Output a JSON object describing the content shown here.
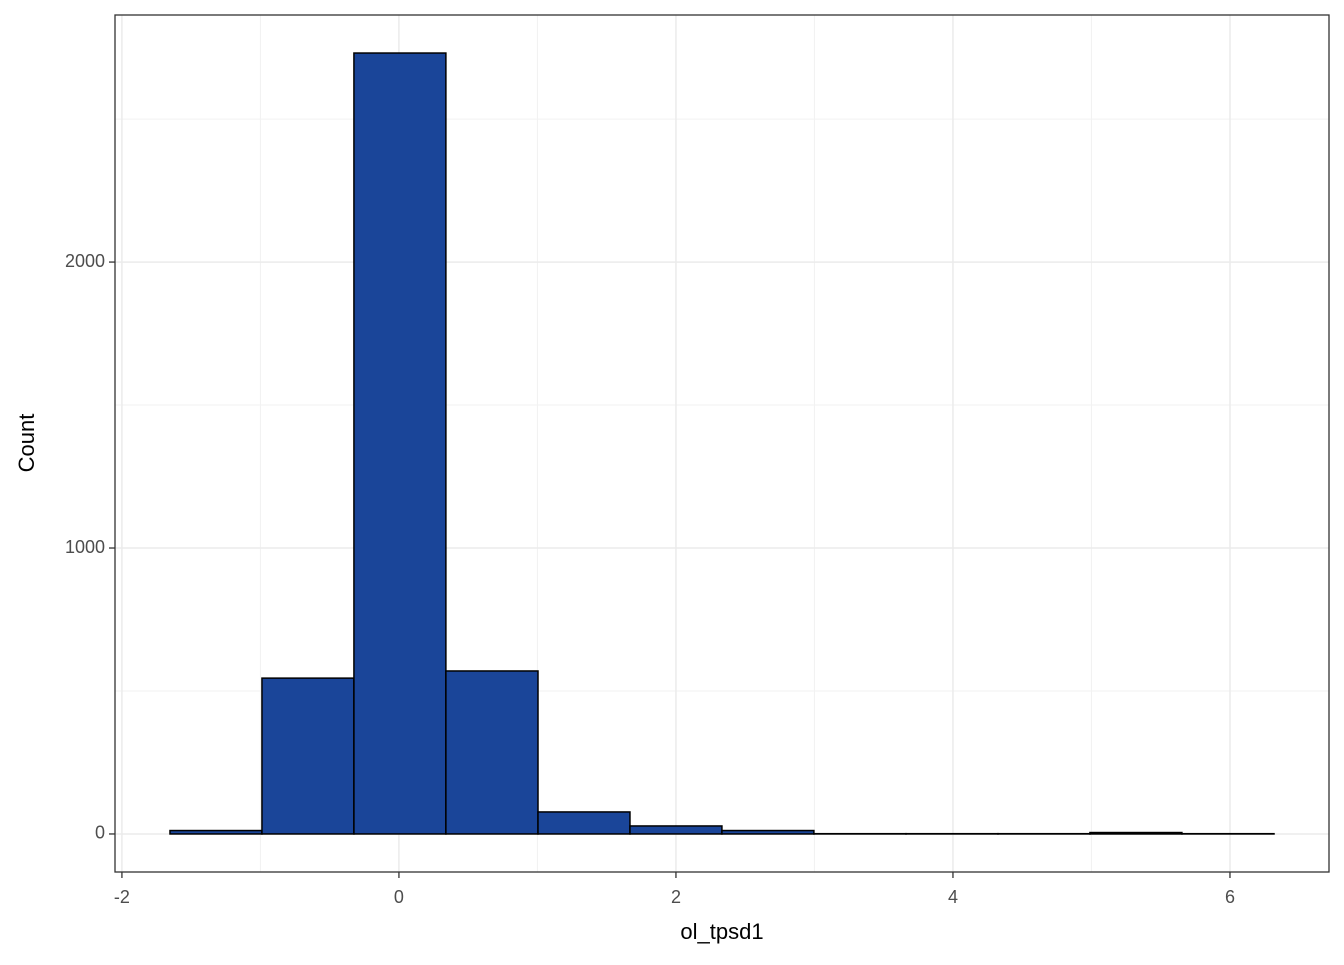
{
  "chart_data": {
    "type": "histogram",
    "x_label": "ol_tpsd1",
    "y_label": "Count",
    "bins": [
      -1.653,
      -0.989,
      -0.325,
      0.339,
      1.004,
      1.668,
      2.332,
      2.996,
      3.661,
      4.325,
      4.989,
      5.653,
      6.318
    ],
    "values": [
      12,
      545,
      2731,
      570,
      77,
      28,
      12,
      1,
      1,
      1,
      5,
      1
    ],
    "color": "#1a4599",
    "edge_color": "#000000",
    "xlim": [
      -2.05,
      6.715
    ],
    "ylim": [
      -133,
      2864
    ],
    "xticks": [
      -2,
      0,
      2,
      4,
      6
    ],
    "yticks": [
      0,
      1000,
      2000
    ],
    "xminor": [
      -1,
      1,
      3,
      5
    ],
    "yminor": [
      500,
      1500,
      2500
    ],
    "grid": true
  }
}
